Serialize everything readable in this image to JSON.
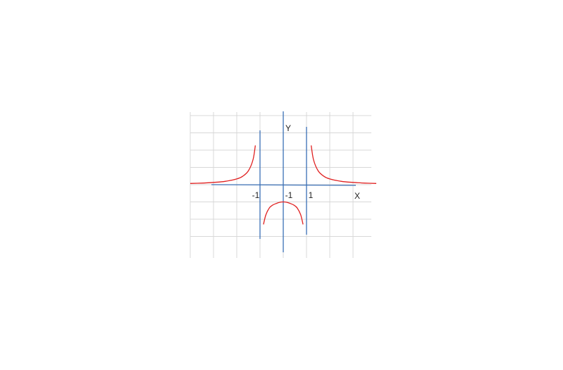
{
  "chart_data": {
    "type": "line",
    "title": "",
    "xlabel": "X",
    "ylabel": "Y",
    "xlim": [
      -4,
      4
    ],
    "ylim": [
      -3,
      3
    ],
    "grid": true,
    "vertical_asymptotes": [
      -1,
      1
    ],
    "horizontal_asymptote": 0,
    "tick_labels": [
      {
        "text": "-1",
        "x": -1
      },
      {
        "text": "-1",
        "x": 0
      },
      {
        "text": "1",
        "x": 1
      }
    ],
    "series": [
      {
        "x": [
          -4.0,
          -3.5,
          -3.0,
          -2.5,
          -2.0,
          -1.75,
          -1.5,
          -1.3,
          -1.2
        ],
        "y": [
          0.07,
          0.09,
          0.13,
          0.19,
          0.33,
          0.48,
          0.8,
          1.45,
          2.27
        ]
      },
      {
        "x": [
          1.2,
          1.3,
          1.5,
          1.75,
          2.0,
          2.5,
          3.0,
          3.5,
          4.0
        ],
        "y": [
          2.27,
          1.45,
          0.8,
          0.48,
          0.33,
          0.19,
          0.13,
          0.09,
          0.07
        ]
      },
      {
        "x": [
          -0.85,
          -0.75,
          -0.6,
          -0.45,
          -0.3,
          -0.15,
          0.0,
          0.15,
          0.3,
          0.45,
          0.6,
          0.75,
          0.85
        ],
        "y": [
          -2.3,
          -1.75,
          -1.35,
          -1.18,
          -1.09,
          -1.02,
          -1.0,
          -1.02,
          -1.09,
          -1.18,
          -1.35,
          -1.75,
          -2.3
        ]
      }
    ],
    "colors": {
      "curve": "#e02020",
      "axis": "#3a6fb5",
      "grid": "#d8d8d8"
    }
  }
}
